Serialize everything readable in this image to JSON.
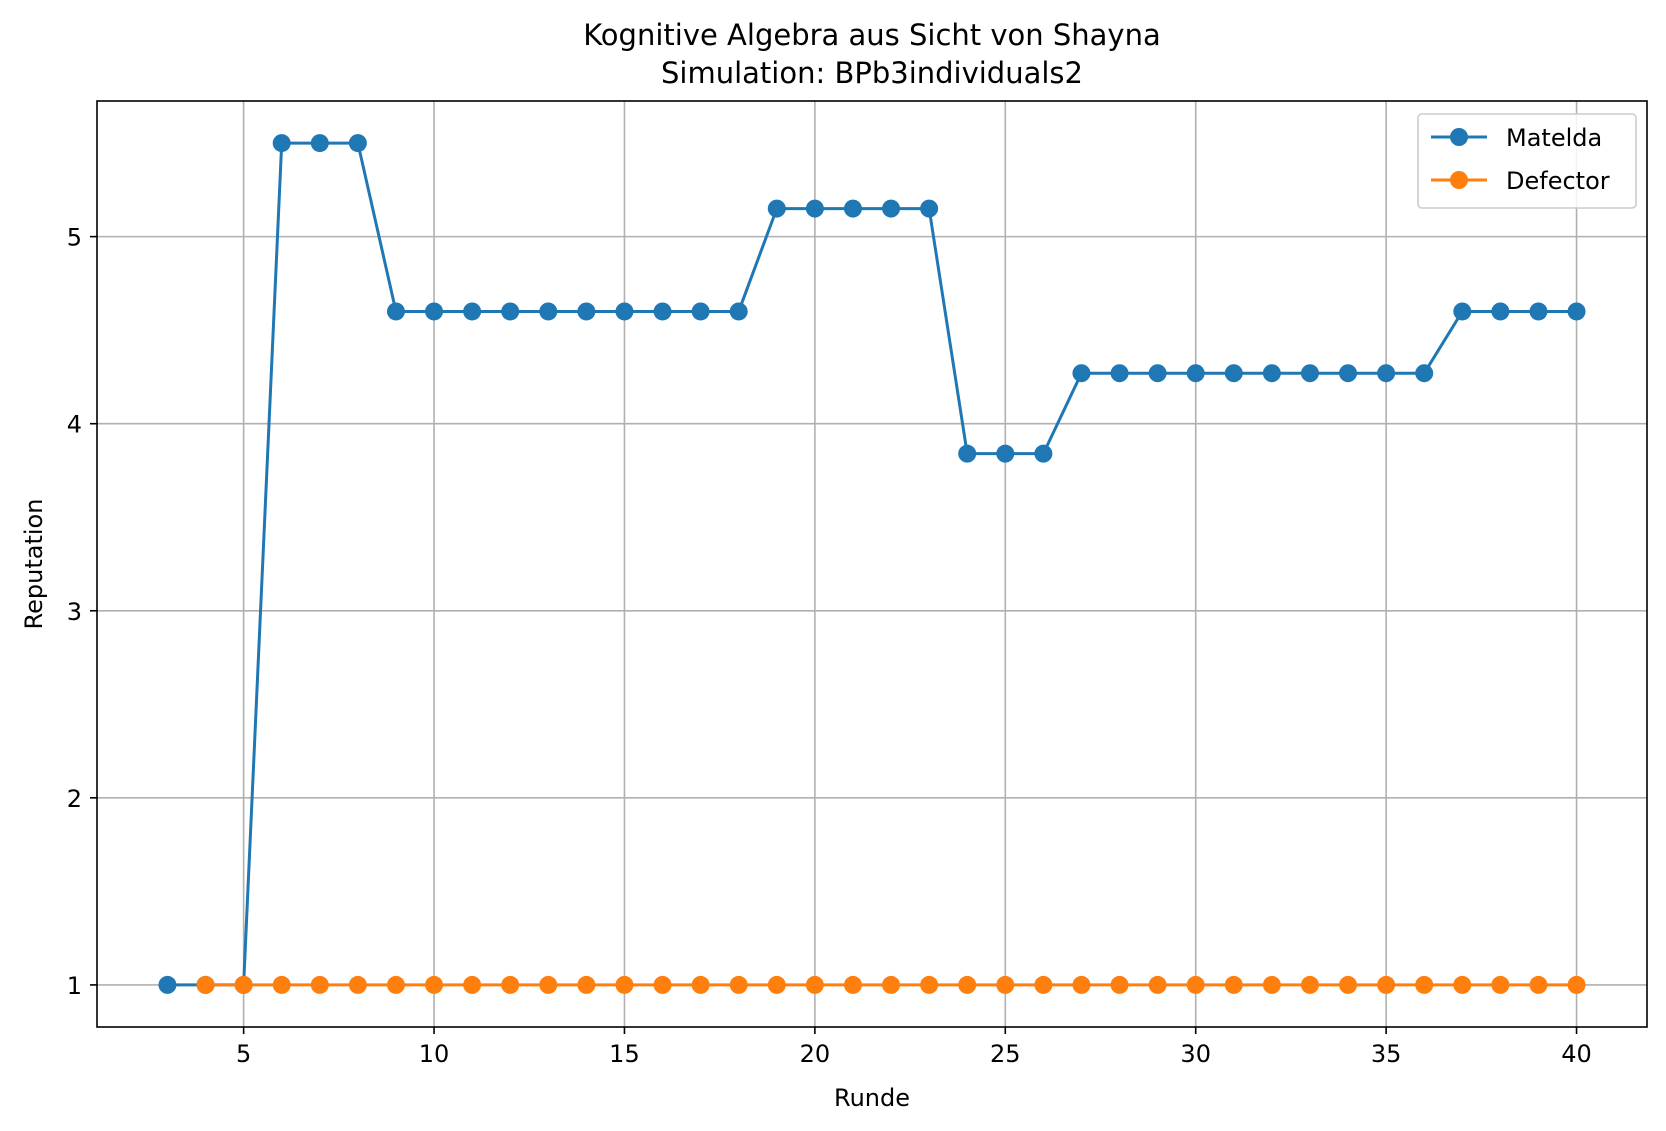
{
  "chart_data": {
    "type": "line",
    "title": "Kognitive Algebra aus Sicht von Shayna",
    "subtitle": "Simulation: BPb3individuals2",
    "xlabel": "Runde",
    "ylabel": "Reputation",
    "xlim": [
      1.15,
      41.85
    ],
    "ylim": [
      0.775,
      5.725
    ],
    "xticks": [
      5,
      10,
      15,
      20,
      25,
      30,
      35,
      40
    ],
    "yticks": [
      1,
      2,
      3,
      4,
      5
    ],
    "grid": true,
    "legend_position": "top-right",
    "series": [
      {
        "name": "Matelda",
        "color": "#1f77b4",
        "x": [
          3,
          4,
          5,
          6,
          7,
          8,
          9,
          10,
          11,
          12,
          13,
          14,
          15,
          16,
          17,
          18,
          19,
          20,
          21,
          22,
          23,
          24,
          25,
          26,
          27,
          28,
          29,
          30,
          31,
          32,
          33,
          34,
          35,
          36,
          37,
          38,
          39,
          40
        ],
        "y": [
          1,
          1,
          1,
          5.5,
          5.5,
          5.5,
          4.6,
          4.6,
          4.6,
          4.6,
          4.6,
          4.6,
          4.6,
          4.6,
          4.6,
          4.6,
          5.15,
          5.15,
          5.15,
          5.15,
          5.15,
          3.84,
          3.84,
          3.84,
          4.27,
          4.27,
          4.27,
          4.27,
          4.27,
          4.27,
          4.27,
          4.27,
          4.27,
          4.27,
          4.6,
          4.6,
          4.6,
          4.6
        ]
      },
      {
        "name": "Defector",
        "color": "#ff7f0e",
        "x": [
          4,
          5,
          6,
          7,
          8,
          9,
          10,
          11,
          12,
          13,
          14,
          15,
          16,
          17,
          18,
          19,
          20,
          21,
          22,
          23,
          24,
          25,
          26,
          27,
          28,
          29,
          30,
          31,
          32,
          33,
          34,
          35,
          36,
          37,
          38,
          39,
          40
        ],
        "y": [
          1,
          1,
          1,
          1,
          1,
          1,
          1,
          1,
          1,
          1,
          1,
          1,
          1,
          1,
          1,
          1,
          1,
          1,
          1,
          1,
          1,
          1,
          1,
          1,
          1,
          1,
          1,
          1,
          1,
          1,
          1,
          1,
          1,
          1,
          1,
          1,
          1
        ]
      }
    ]
  }
}
